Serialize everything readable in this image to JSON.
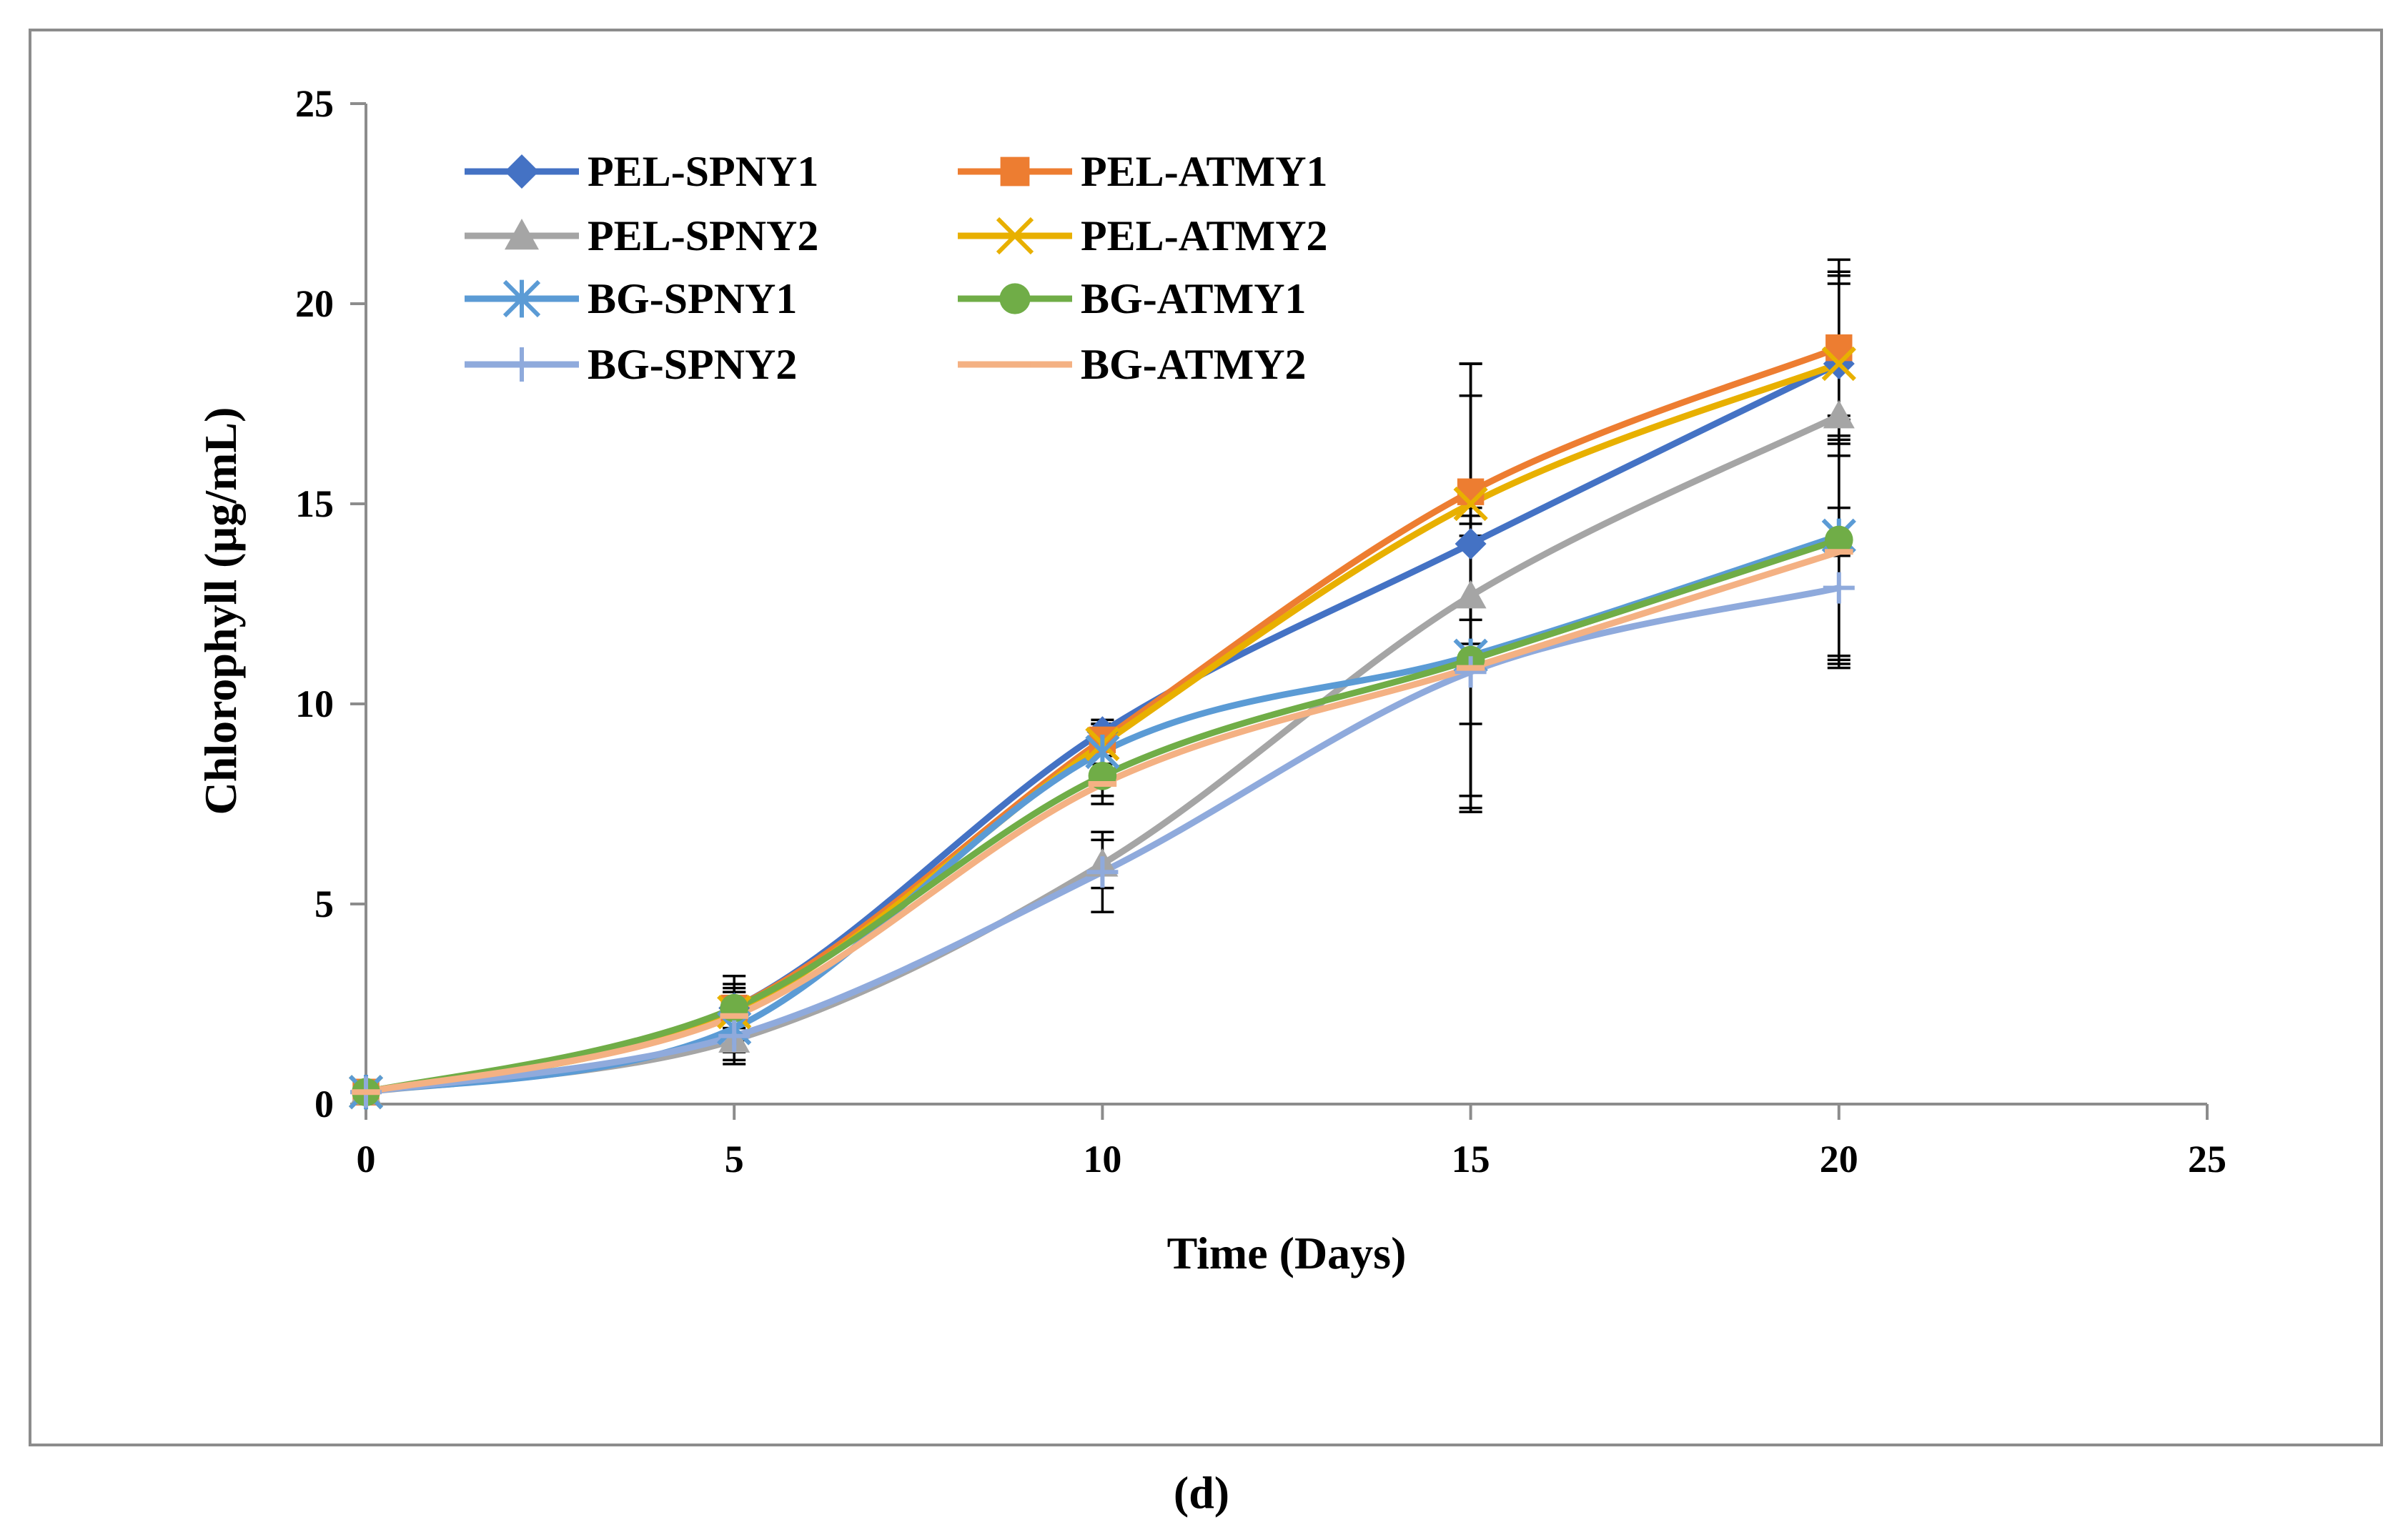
{
  "caption": "(d)",
  "chart_data": {
    "type": "line",
    "xlabel": "Time (Days)",
    "ylabel": "Chlorophyll (µg/mL)",
    "xlim": [
      0,
      25
    ],
    "ylim": [
      0,
      25
    ],
    "xticks": [
      0,
      5,
      10,
      15,
      20,
      25
    ],
    "yticks": [
      0,
      5,
      10,
      15,
      20,
      25
    ],
    "grid": false,
    "smooth": true,
    "legend_position": "top-left",
    "x": [
      0,
      5,
      10,
      15,
      20
    ],
    "series": [
      {
        "name": "PEL-SPNY1",
        "color": "#4472C4",
        "marker": "diamond",
        "values": [
          0.3,
          2.4,
          9.3,
          14.0,
          18.5
        ],
        "errors": [
          0.1,
          0.6,
          0.3,
          4.5,
          2.3
        ]
      },
      {
        "name": "PEL-ATMY1",
        "color": "#ED7D31",
        "marker": "square",
        "values": [
          0.3,
          2.4,
          9.1,
          15.3,
          18.9
        ],
        "errors": [
          0.1,
          0.8,
          0.4,
          3.2,
          2.2
        ]
      },
      {
        "name": "PEL-SPNY2",
        "color": "#A5A5A5",
        "marker": "triangle",
        "values": [
          0.3,
          1.6,
          6.0,
          12.7,
          17.2
        ],
        "errors": [
          0.1,
          0.5,
          0.6,
          5.0,
          3.5
        ]
      },
      {
        "name": "PEL-ATMY2",
        "color": "#E8B000",
        "marker": "x",
        "values": [
          0.3,
          2.3,
          9.0,
          15.0,
          18.5
        ],
        "errors": [
          0.1,
          0.5,
          0.5,
          3.5,
          2.0
        ]
      },
      {
        "name": "BG-SPNY1",
        "color": "#5B9BD5",
        "marker": "star",
        "values": [
          0.3,
          1.9,
          8.8,
          11.2,
          14.2
        ],
        "errors": [
          0.1,
          0.6,
          0.5,
          3.5,
          3.0
        ]
      },
      {
        "name": "BG-ATMY1",
        "color": "#70AD47",
        "marker": "circle",
        "values": [
          0.3,
          2.4,
          8.2,
          11.1,
          14.1
        ],
        "errors": [
          0.1,
          0.5,
          0.5,
          3.8,
          3.0
        ]
      },
      {
        "name": "BG-SPNY2",
        "color": "#8FAADC",
        "marker": "plus",
        "values": [
          0.3,
          1.7,
          5.8,
          10.8,
          12.9
        ],
        "errors": [
          0.1,
          0.7,
          1.0,
          3.4,
          2.0
        ]
      },
      {
        "name": "BG-ATMY2",
        "color": "#F4B183",
        "marker": "dash",
        "values": [
          0.3,
          2.2,
          8.0,
          10.9,
          13.8
        ],
        "errors": [
          0.1,
          0.6,
          0.5,
          3.6,
          2.8
        ]
      }
    ]
  }
}
